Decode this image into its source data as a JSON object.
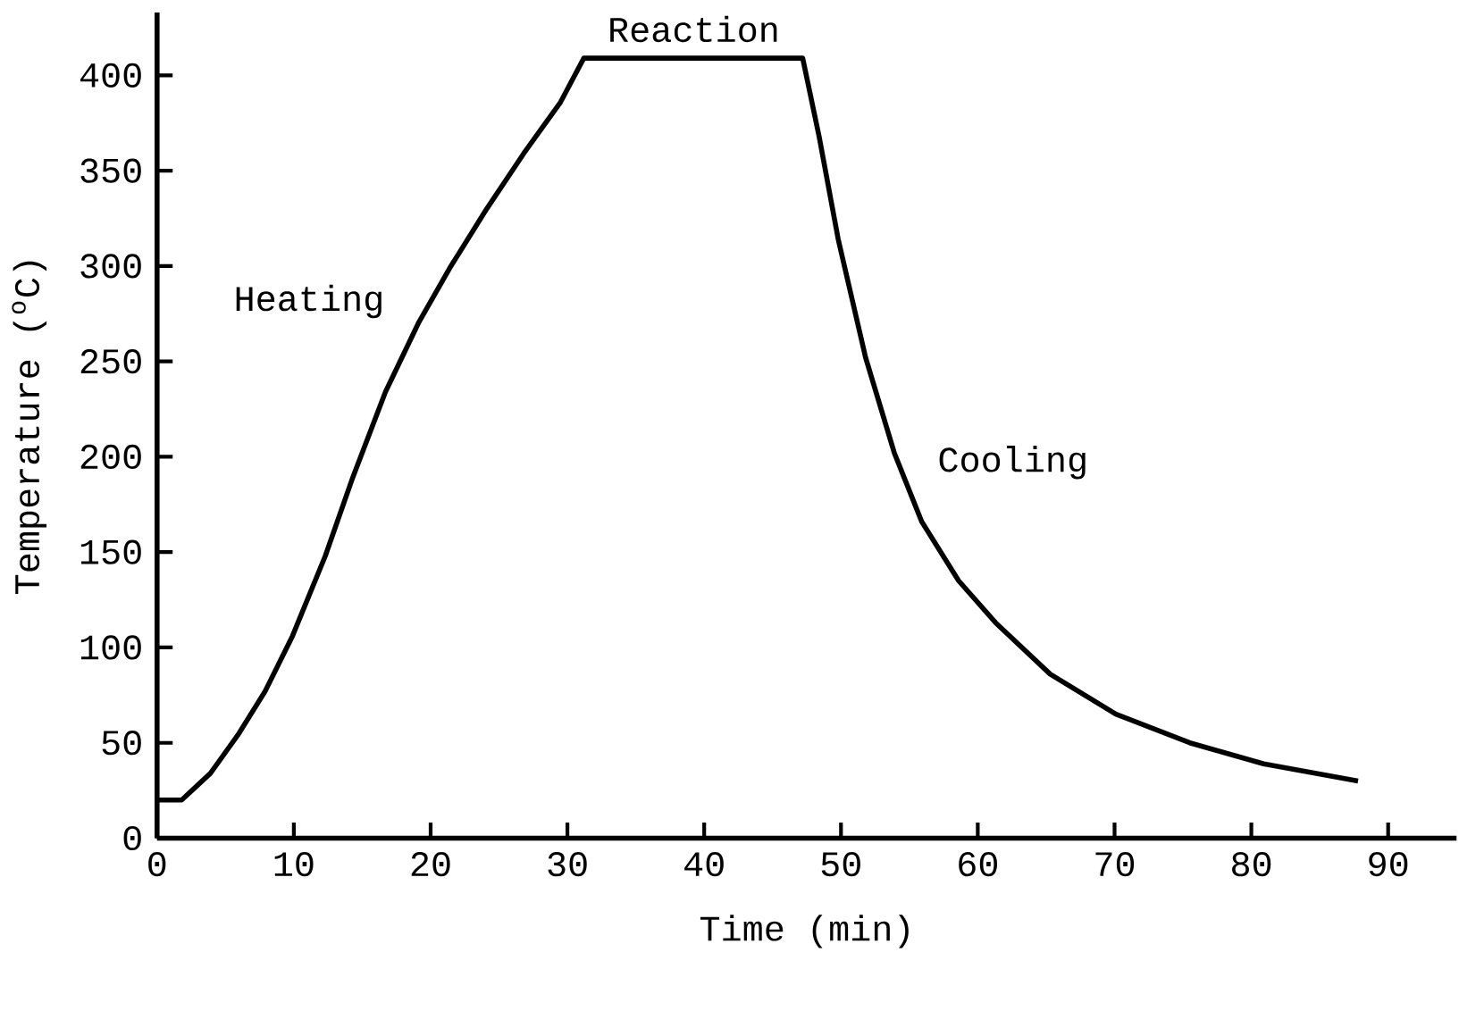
{
  "chart_data": {
    "type": "line",
    "xlabel": "Time (min)",
    "ylabel": "Temperature ($^{o}$C)",
    "x": [
      0,
      1.8,
      3.9,
      5.9,
      7.9,
      9.9,
      12.3,
      14.3,
      16.7,
      19.1,
      21.4,
      24.1,
      26.8,
      29.5,
      31.2,
      47.2,
      48.4,
      49.8,
      51.8,
      53.9,
      55.9,
      58.6,
      61.3,
      65.3,
      70.1,
      75.5,
      80.9,
      87.8
    ],
    "series": [
      {
        "color": "#000000",
        "values": [
          20,
          20,
          34,
          54,
          77,
          106,
          148,
          189,
          234,
          270,
          299,
          330,
          359,
          386,
          409,
          409,
          368,
          314,
          252,
          202,
          166,
          135,
          113,
          86,
          65,
          50,
          39,
          30
        ]
      }
    ],
    "xlim": [
      0,
      95
    ],
    "ylim": [
      0,
      433
    ],
    "xticks": [
      0,
      10,
      20,
      30,
      40,
      50,
      60,
      70,
      80,
      90
    ],
    "yticks": [
      0,
      50,
      100,
      150,
      200,
      250,
      300,
      350,
      400
    ],
    "grid": false,
    "marker": "none",
    "line_style": "solid",
    "annotations": [
      "Heating",
      "Reaction",
      "Cooling"
    ]
  }
}
